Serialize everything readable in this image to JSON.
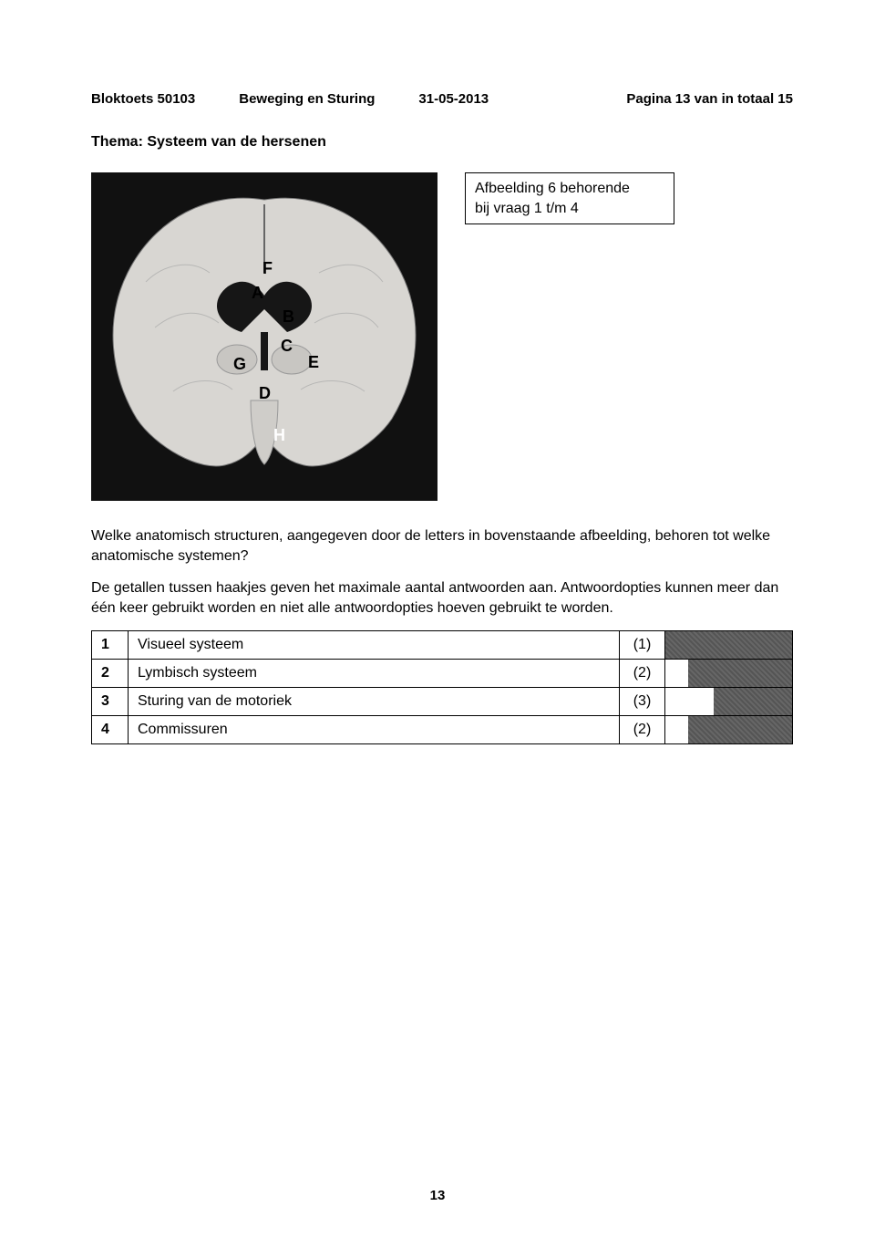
{
  "header": {
    "exam_code": "Bloktoets 50103",
    "subject": "Beweging en Sturing",
    "date": "31-05-2013",
    "page_info": "Pagina 13 van in totaal 15"
  },
  "theme_title": "Thema: Systeem van de hersenen",
  "caption": {
    "line1": "Afbeelding 6 behorende",
    "line2": "bij vraag 1 t/m 4"
  },
  "figure_labels": [
    "F",
    "A",
    "B",
    "C",
    "G",
    "E",
    "D",
    "H"
  ],
  "paragraph1": "Welke anatomisch structuren, aangegeven door de letters in bovenstaande afbeelding, behoren tot welke anatomische systemen?",
  "paragraph2": "De getallen tussen haakjes geven het maximale aantal antwoorden aan. Antwoordopties kunnen meer dan één keer gebruikt worden en niet alle antwoordopties hoeven gebruikt te worden.",
  "table": {
    "rows": [
      {
        "num": "1",
        "label": "Visueel systeem",
        "count": "(1)",
        "shade_left_pct": 0,
        "shade_width_pct": 100
      },
      {
        "num": "2",
        "label": "Lymbisch systeem",
        "count": "(2)",
        "shade_left_pct": 18,
        "shade_width_pct": 82
      },
      {
        "num": "3",
        "label": "Sturing van de motoriek",
        "count": "(3)",
        "shade_left_pct": 38,
        "shade_width_pct": 62
      },
      {
        "num": "4",
        "label": "Commissuren",
        "count": "(2)",
        "shade_left_pct": 18,
        "shade_width_pct": 82
      }
    ]
  },
  "page_number": "13"
}
